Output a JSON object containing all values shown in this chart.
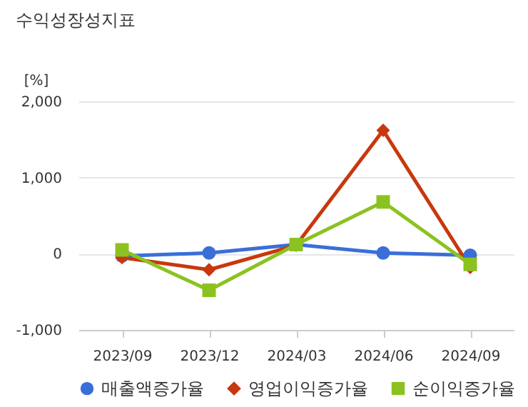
{
  "chart_data": {
    "type": "line",
    "title": "수익성장성지표",
    "ylabel": "[%]",
    "categories": [
      "2023/09",
      "2023/12",
      "2024/03",
      "2024/06",
      "2024/09"
    ],
    "series": [
      {
        "name": "매출액증가율",
        "color": "#3a6fd8",
        "marker": "circle",
        "values": [
          -30,
          10,
          120,
          10,
          -20
        ]
      },
      {
        "name": "영업이익증가율",
        "color": "#c8380e",
        "marker": "diamond",
        "values": [
          -50,
          -210,
          110,
          1620,
          -180
        ]
      },
      {
        "name": "순이익증가율",
        "color": "#8cc220",
        "marker": "square",
        "values": [
          50,
          -480,
          120,
          680,
          -140
        ]
      }
    ],
    "ylim": [
      -1000,
      2000
    ],
    "yticks": [
      {
        "value": -1000,
        "label": "-1,000"
      },
      0,
      {
        "value": 1000,
        "label": "1,000"
      },
      {
        "value": 2000,
        "label": "2,000"
      }
    ],
    "grid": "y",
    "legend": "bottom"
  }
}
